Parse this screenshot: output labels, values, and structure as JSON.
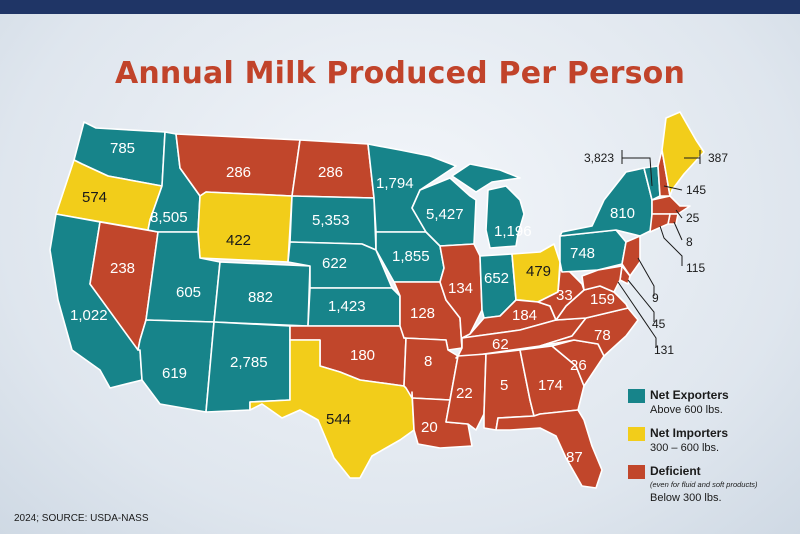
{
  "title": "Annual Milk Produced Per Person",
  "source": "2024; SOURCE: USDA-NASS",
  "colors": {
    "exporter": "#17848a",
    "importer": "#f2cd1a",
    "deficient": "#c1462b"
  },
  "legend": [
    {
      "title": "Net Exporters",
      "sub": "Above 600 lbs.",
      "note": ""
    },
    {
      "title": "Net Importers",
      "sub": "300 – 600 lbs.",
      "note": ""
    },
    {
      "title": "Deficient",
      "sub": "Below 300 lbs.",
      "note": "(even for fluid and soft products)"
    }
  ],
  "states": {
    "WA": {
      "value": "785",
      "category": "exporter"
    },
    "OR": {
      "value": "574",
      "category": "importer"
    },
    "CA": {
      "value": "1,022",
      "category": "exporter"
    },
    "NV": {
      "value": "238",
      "category": "deficient"
    },
    "ID": {
      "value": "8,505",
      "category": "exporter"
    },
    "MT": {
      "value": "286",
      "category": "deficient"
    },
    "WY": {
      "value": "422",
      "category": "importer"
    },
    "UT": {
      "value": "605",
      "category": "exporter"
    },
    "AZ": {
      "value": "619",
      "category": "exporter"
    },
    "CO": {
      "value": "882",
      "category": "exporter"
    },
    "NM": {
      "value": "2,785",
      "category": "exporter"
    },
    "ND": {
      "value": "286",
      "category": "deficient"
    },
    "SD": {
      "value": "5,353",
      "category": "exporter"
    },
    "NE": {
      "value": "622",
      "category": "exporter"
    },
    "KS": {
      "value": "1,423",
      "category": "exporter"
    },
    "OK": {
      "value": "180",
      "category": "deficient"
    },
    "TX": {
      "value": "544",
      "category": "importer"
    },
    "MN": {
      "value": "1,794",
      "category": "exporter"
    },
    "IA": {
      "value": "1,855",
      "category": "exporter"
    },
    "MO": {
      "value": "128",
      "category": "deficient"
    },
    "AR": {
      "value": "8",
      "category": "deficient"
    },
    "LA": {
      "value": "20",
      "category": "deficient"
    },
    "WI": {
      "value": "5,427",
      "category": "exporter"
    },
    "IL": {
      "value": "134",
      "category": "deficient"
    },
    "MI": {
      "value": "1,196",
      "category": "exporter"
    },
    "IN": {
      "value": "652",
      "category": "exporter"
    },
    "OH": {
      "value": "479",
      "category": "importer"
    },
    "KY": {
      "value": "184",
      "category": "deficient"
    },
    "TN": {
      "value": "62",
      "category": "deficient"
    },
    "MS": {
      "value": "22",
      "category": "deficient"
    },
    "AL": {
      "value": "5",
      "category": "deficient"
    },
    "GA": {
      "value": "174",
      "category": "deficient"
    },
    "FL": {
      "value": "87",
      "category": "deficient"
    },
    "SC": {
      "value": "26",
      "category": "deficient"
    },
    "NC": {
      "value": "78",
      "category": "deficient"
    },
    "VA": {
      "value": "159",
      "category": "deficient"
    },
    "WV": {
      "value": "33",
      "category": "deficient"
    },
    "PA": {
      "value": "748",
      "category": "exporter"
    },
    "NY": {
      "value": "810",
      "category": "exporter"
    },
    "VT": {
      "value": "3,823",
      "category": "exporter"
    },
    "ME": {
      "value": "387",
      "category": "importer"
    },
    "NH": {
      "value": "145",
      "category": "deficient"
    },
    "MA": {
      "value": "25",
      "category": "deficient"
    },
    "RI": {
      "value": "8",
      "category": "deficient"
    },
    "CT": {
      "value": "115",
      "category": "deficient"
    },
    "NJ": {
      "value": "9",
      "category": "deficient"
    },
    "DE": {
      "value": "45",
      "category": "deficient"
    },
    "MD": {
      "value": "131",
      "category": "deficient"
    }
  }
}
